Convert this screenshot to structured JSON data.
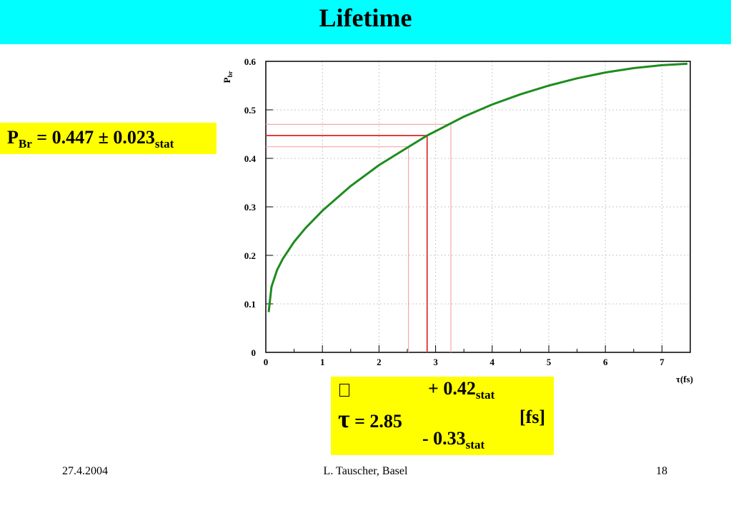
{
  "slide": {
    "title": "Lifetime",
    "footer": {
      "date": "27.4.2004",
      "author": "L. Tauscher, Basel",
      "page": "18"
    }
  },
  "result_pbr": {
    "symbol": "P",
    "symbol_sub": "Br",
    "equals_text": " = 0.447 ± 0.023",
    "stat_sub": "stat"
  },
  "result_tau": {
    "glyph_icon": "missing-glyph-box",
    "plus_text": "+ 0.42",
    "plus_sub": "stat",
    "symbol": "τ",
    "value_text": " = 2.85",
    "unit": "[fs]",
    "minus_text": "- 0.33",
    "minus_sub": "stat"
  },
  "colors": {
    "title_bar": "#00ffff",
    "highlight": "#ffff00",
    "curve": "#1e8c1e",
    "marker": "#e03030",
    "error_band": "#f4a8a8",
    "grid": "#c8c8c8"
  },
  "chart_data": {
    "type": "line",
    "xlabel": "τ(fs)",
    "ylabel": "P",
    "ylabel_sub": "br",
    "xlim": [
      0,
      7.5
    ],
    "ylim": [
      0,
      0.6
    ],
    "grid": true,
    "x_ticks": [
      0,
      1,
      2,
      3,
      4,
      5,
      6,
      7
    ],
    "y_ticks": [
      0,
      0.1,
      0.2,
      0.3,
      0.4,
      0.5,
      0.6
    ],
    "y_tick_labels": [
      "0",
      "0.1",
      "0.2",
      "0.3",
      "0.4",
      "0.5",
      "0.6"
    ],
    "series": [
      {
        "x": [
          0.05,
          0.1,
          0.2,
          0.3,
          0.5,
          0.7,
          1.0,
          1.5,
          2.0,
          2.5,
          2.85,
          3.0,
          3.5,
          4.0,
          4.5,
          5.0,
          5.5,
          6.0,
          6.5,
          7.0,
          7.45
        ],
        "y": [
          0.083,
          0.135,
          0.17,
          0.193,
          0.228,
          0.256,
          0.292,
          0.343,
          0.386,
          0.422,
          0.447,
          0.456,
          0.486,
          0.511,
          0.532,
          0.55,
          0.565,
          0.577,
          0.586,
          0.592,
          0.595
        ]
      }
    ],
    "markers": {
      "value": {
        "x": 2.85,
        "y": 0.447
      },
      "band_upper": {
        "x": 3.27,
        "y": 0.47
      },
      "band_lower": {
        "x": 2.52,
        "y": 0.424
      }
    }
  }
}
